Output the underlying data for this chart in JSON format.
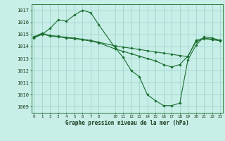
{
  "title": "Graphe pression niveau de la mer (hPa)",
  "bg_color": "#c8eee8",
  "grid_color": "#a0d4cc",
  "line_color": "#1a6e2e",
  "ylim": [
    1008.5,
    1017.5
  ],
  "yticks": [
    1009,
    1010,
    1011,
    1012,
    1013,
    1014,
    1015,
    1016,
    1017
  ],
  "xticks": [
    0,
    1,
    2,
    3,
    4,
    5,
    6,
    7,
    8,
    10,
    11,
    12,
    13,
    14,
    15,
    16,
    17,
    18,
    19,
    20,
    21,
    22,
    23
  ],
  "xlim": [
    -0.3,
    23.3
  ],
  "line1_x": [
    0,
    1,
    2,
    3,
    4,
    5,
    6,
    7,
    8,
    10,
    11,
    12,
    13,
    14,
    15,
    16,
    17,
    18,
    19,
    20,
    21,
    22,
    23
  ],
  "line1_y": [
    1014.7,
    1015.0,
    1015.5,
    1016.2,
    1016.1,
    1016.6,
    1017.0,
    1016.8,
    1015.8,
    1013.9,
    1013.1,
    1012.0,
    1011.5,
    1010.0,
    1009.5,
    1009.1,
    1009.1,
    1009.3,
    1012.9,
    1014.1,
    1014.8,
    1014.7,
    1014.5
  ],
  "line2_x": [
    0,
    1,
    2,
    3,
    4,
    5,
    6,
    7,
    8,
    10,
    11,
    12,
    13,
    14,
    15,
    16,
    17,
    18,
    19,
    20,
    21,
    22,
    23
  ],
  "line2_y": [
    1014.8,
    1015.1,
    1014.9,
    1014.85,
    1014.75,
    1014.7,
    1014.6,
    1014.5,
    1014.35,
    1014.05,
    1013.95,
    1013.85,
    1013.75,
    1013.65,
    1013.55,
    1013.45,
    1013.35,
    1013.25,
    1013.15,
    1014.5,
    1014.7,
    1014.6,
    1014.5
  ],
  "line3_x": [
    0,
    1,
    2,
    3,
    4,
    5,
    6,
    7,
    8,
    10,
    11,
    12,
    13,
    14,
    15,
    16,
    17,
    18,
    19,
    20,
    21,
    22,
    23
  ],
  "line3_y": [
    1014.75,
    1015.05,
    1014.85,
    1014.8,
    1014.7,
    1014.65,
    1014.55,
    1014.45,
    1014.3,
    1013.8,
    1013.6,
    1013.4,
    1013.2,
    1013.0,
    1012.8,
    1012.5,
    1012.3,
    1012.5,
    1013.2,
    1014.4,
    1014.65,
    1014.55,
    1014.48
  ]
}
